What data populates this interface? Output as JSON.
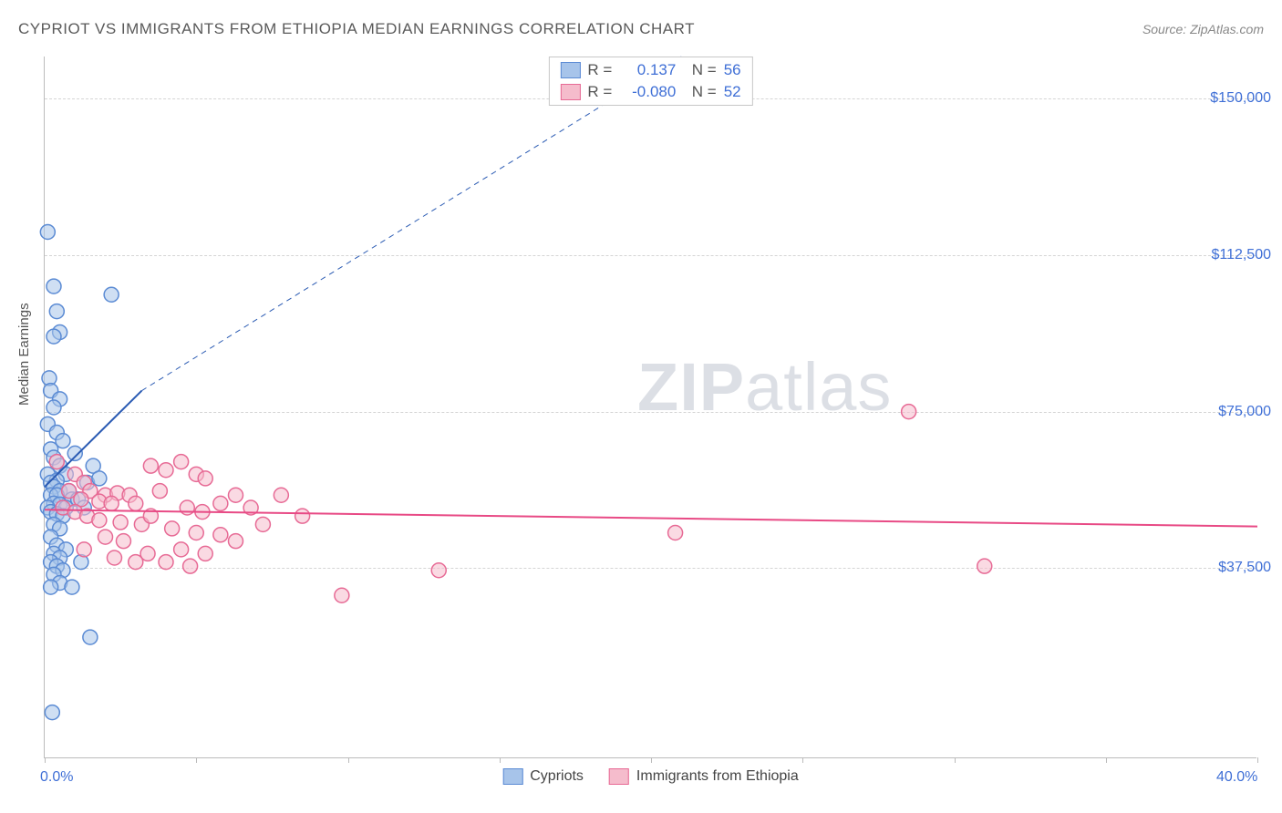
{
  "title": "CYPRIOT VS IMMIGRANTS FROM ETHIOPIA MEDIAN EARNINGS CORRELATION CHART",
  "source": "Source: ZipAtlas.com",
  "ylabel": "Median Earnings",
  "watermark_bold": "ZIP",
  "watermark_light": "atlas",
  "chart": {
    "type": "scatter",
    "xlim": [
      0,
      40
    ],
    "ylim": [
      -8000,
      160000
    ],
    "x_tick_step": 5,
    "x_tick_labels": {
      "0": "0.0%",
      "40": "40.0%"
    },
    "y_gridlines": [
      37500,
      75000,
      112500,
      150000
    ],
    "y_tick_labels": {
      "37500": "$37,500",
      "75000": "$75,000",
      "112500": "$112,500",
      "150000": "$150,000"
    },
    "background_color": "#ffffff",
    "grid_color": "#d5d5d5",
    "marker_radius": 8,
    "marker_opacity": 0.55,
    "series": [
      {
        "name": "Cypriots",
        "color_fill": "#a7c4ea",
        "color_stroke": "#5b8bd4",
        "r_value": "0.137",
        "n_value": "56",
        "trend": {
          "x1": 0,
          "y1": 57000,
          "x2": 3.2,
          "y2": 80000,
          "extrap_x2": 21,
          "extrap_y2": 160000,
          "color": "#2b5bb3",
          "width": 2
        },
        "points": [
          [
            0.1,
            118000
          ],
          [
            0.3,
            105000
          ],
          [
            0.4,
            99000
          ],
          [
            0.5,
            94000
          ],
          [
            0.3,
            93000
          ],
          [
            2.2,
            103000
          ],
          [
            0.15,
            83000
          ],
          [
            0.2,
            80000
          ],
          [
            0.5,
            78000
          ],
          [
            0.3,
            76000
          ],
          [
            0.1,
            72000
          ],
          [
            0.4,
            70000
          ],
          [
            0.6,
            68000
          ],
          [
            0.2,
            66000
          ],
          [
            0.3,
            64000
          ],
          [
            0.5,
            62000
          ],
          [
            0.1,
            60000
          ],
          [
            0.7,
            60000
          ],
          [
            0.4,
            58500
          ],
          [
            0.2,
            58000
          ],
          [
            0.3,
            57000
          ],
          [
            0.5,
            56000
          ],
          [
            0.8,
            56000
          ],
          [
            0.2,
            55000
          ],
          [
            0.4,
            55000
          ],
          [
            0.9,
            54000
          ],
          [
            0.3,
            53000
          ],
          [
            0.5,
            52800
          ],
          [
            0.1,
            52000
          ],
          [
            0.7,
            52000
          ],
          [
            0.2,
            51000
          ],
          [
            0.4,
            50500
          ],
          [
            0.6,
            50000
          ],
          [
            1.1,
            54000
          ],
          [
            1.4,
            58000
          ],
          [
            1.6,
            62000
          ],
          [
            1.8,
            59000
          ],
          [
            0.3,
            48000
          ],
          [
            0.5,
            47000
          ],
          [
            0.2,
            45000
          ],
          [
            0.4,
            43000
          ],
          [
            0.7,
            42000
          ],
          [
            0.3,
            41000
          ],
          [
            0.5,
            40000
          ],
          [
            0.2,
            39000
          ],
          [
            0.4,
            38000
          ],
          [
            0.6,
            37000
          ],
          [
            0.3,
            36000
          ],
          [
            0.5,
            34000
          ],
          [
            0.2,
            33000
          ],
          [
            0.9,
            33000
          ],
          [
            1.2,
            39000
          ],
          [
            1.5,
            21000
          ],
          [
            0.25,
            3000
          ],
          [
            1.0,
            65000
          ],
          [
            1.3,
            52000
          ]
        ]
      },
      {
        "name": "Immigrants from Ethiopia",
        "color_fill": "#f5bccc",
        "color_stroke": "#e76a95",
        "r_value": "-0.080",
        "n_value": "52",
        "trend": {
          "x1": 0,
          "y1": 51500,
          "x2": 40,
          "y2": 47500,
          "color": "#e84a85",
          "width": 2
        },
        "points": [
          [
            0.4,
            63000
          ],
          [
            1.0,
            60000
          ],
          [
            1.3,
            58000
          ],
          [
            0.8,
            56000
          ],
          [
            1.5,
            56000
          ],
          [
            2.0,
            55000
          ],
          [
            2.4,
            55500
          ],
          [
            2.8,
            55000
          ],
          [
            1.2,
            54000
          ],
          [
            1.8,
            53500
          ],
          [
            2.2,
            53000
          ],
          [
            3.0,
            53000
          ],
          [
            3.5,
            62000
          ],
          [
            4.0,
            61000
          ],
          [
            4.5,
            63000
          ],
          [
            5.0,
            60000
          ],
          [
            5.3,
            59000
          ],
          [
            5.8,
            53000
          ],
          [
            6.3,
            55000
          ],
          [
            6.8,
            52000
          ],
          [
            3.8,
            56000
          ],
          [
            4.7,
            52000
          ],
          [
            5.2,
            51000
          ],
          [
            0.6,
            52000
          ],
          [
            1.0,
            51000
          ],
          [
            1.4,
            50000
          ],
          [
            1.8,
            49000
          ],
          [
            2.5,
            48500
          ],
          [
            3.2,
            48000
          ],
          [
            4.2,
            47000
          ],
          [
            5.0,
            46000
          ],
          [
            5.8,
            45500
          ],
          [
            3.5,
            50000
          ],
          [
            4.5,
            42000
          ],
          [
            5.3,
            41000
          ],
          [
            2.0,
            45000
          ],
          [
            2.6,
            44000
          ],
          [
            3.4,
            41000
          ],
          [
            4.0,
            39000
          ],
          [
            4.8,
            38000
          ],
          [
            1.3,
            42000
          ],
          [
            2.3,
            40000
          ],
          [
            3.0,
            39000
          ],
          [
            6.3,
            44000
          ],
          [
            8.5,
            50000
          ],
          [
            9.8,
            31000
          ],
          [
            13.0,
            37000
          ],
          [
            20.8,
            46000
          ],
          [
            31.0,
            38000
          ],
          [
            28.5,
            75000
          ],
          [
            7.2,
            48000
          ],
          [
            7.8,
            55000
          ]
        ]
      }
    ]
  },
  "legend_bottom": [
    {
      "label": "Cypriots",
      "fill": "#a7c4ea",
      "stroke": "#5b8bd4"
    },
    {
      "label": "Immigrants from Ethiopia",
      "fill": "#f5bccc",
      "stroke": "#e76a95"
    }
  ]
}
